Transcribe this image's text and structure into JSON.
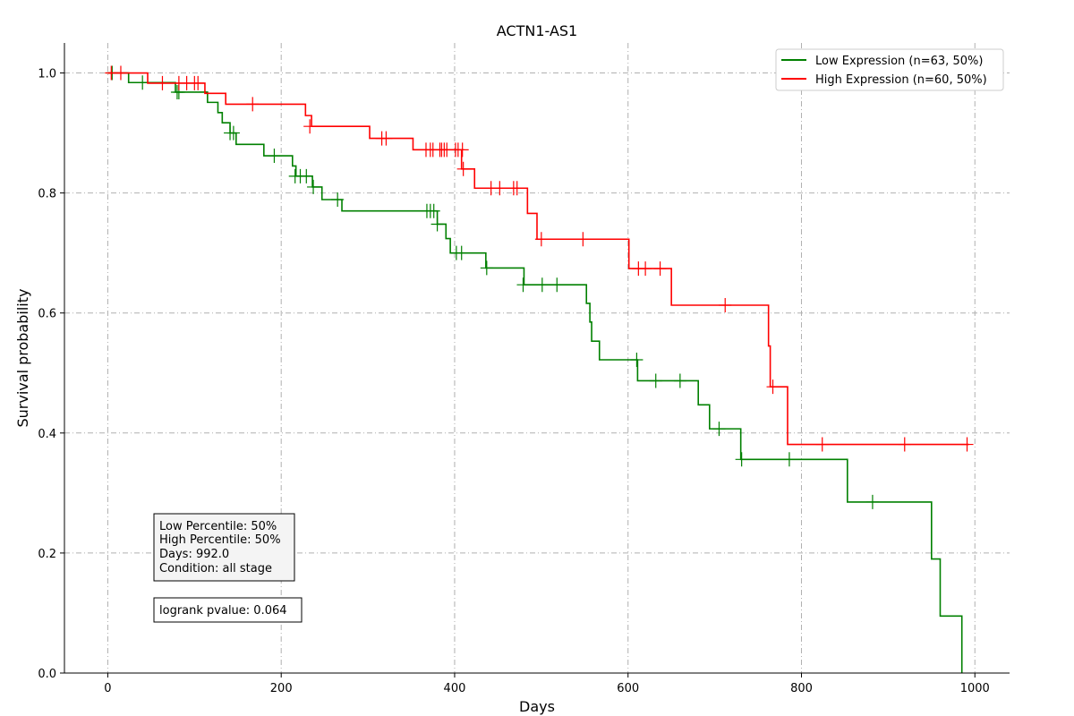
{
  "chart_data": {
    "type": "line",
    "title": "ACTN1-AS1",
    "xlabel": "Days",
    "ylabel": "Survival probability",
    "xlim": [
      -50,
      1040
    ],
    "ylim": [
      0,
      1.05
    ],
    "grid": true,
    "legend_position": "top-right",
    "x_ticks": [
      0,
      200,
      400,
      600,
      800,
      1000
    ],
    "y_ticks": [
      0.0,
      0.2,
      0.4,
      0.6,
      0.8,
      1.0
    ],
    "series": [
      {
        "name": "Low Expression (n=63, 50%)",
        "color": "#008000",
        "steps": [
          [
            0,
            1.0
          ],
          [
            24,
            0.984
          ],
          [
            78,
            0.968
          ],
          [
            115,
            0.951
          ],
          [
            127,
            0.934
          ],
          [
            132,
            0.917
          ],
          [
            141,
            0.9
          ],
          [
            148,
            0.881
          ],
          [
            180,
            0.862
          ],
          [
            213,
            0.845
          ],
          [
            217,
            0.828
          ],
          [
            236,
            0.81
          ],
          [
            247,
            0.789
          ],
          [
            270,
            0.77
          ],
          [
            380,
            0.748
          ],
          [
            390,
            0.724
          ],
          [
            395,
            0.7
          ],
          [
            436,
            0.675
          ],
          [
            480,
            0.647
          ],
          [
            552,
            0.616
          ],
          [
            556,
            0.585
          ],
          [
            558,
            0.553
          ],
          [
            567,
            0.522
          ],
          [
            611,
            0.487
          ],
          [
            681,
            0.447
          ],
          [
            694,
            0.407
          ],
          [
            730,
            0.356
          ],
          [
            853,
            0.285
          ],
          [
            950,
            0.19
          ],
          [
            960,
            0.095
          ],
          [
            985,
            0.0
          ]
        ],
        "end_x": 985,
        "censored": [
          [
            5,
            1.0
          ],
          [
            40,
            0.984
          ],
          [
            80,
            0.968
          ],
          [
            82,
            0.968
          ],
          [
            141,
            0.9
          ],
          [
            145,
            0.9
          ],
          [
            192,
            0.862
          ],
          [
            216,
            0.828
          ],
          [
            222,
            0.828
          ],
          [
            229,
            0.828
          ],
          [
            237,
            0.81
          ],
          [
            265,
            0.789
          ],
          [
            368,
            0.77
          ],
          [
            372,
            0.77
          ],
          [
            376,
            0.77
          ],
          [
            380,
            0.748
          ],
          [
            402,
            0.7
          ],
          [
            408,
            0.7
          ],
          [
            437,
            0.675
          ],
          [
            479,
            0.647
          ],
          [
            501,
            0.647
          ],
          [
            518,
            0.647
          ],
          [
            610,
            0.522
          ],
          [
            632,
            0.487
          ],
          [
            660,
            0.487
          ],
          [
            705,
            0.407
          ],
          [
            731,
            0.356
          ],
          [
            786,
            0.356
          ],
          [
            882,
            0.285
          ]
        ]
      },
      {
        "name": "High Expression (n=60, 50%)",
        "color": "#ff0000",
        "steps": [
          [
            0,
            1.0
          ],
          [
            46,
            0.983
          ],
          [
            112,
            0.966
          ],
          [
            136,
            0.948
          ],
          [
            228,
            0.929
          ],
          [
            235,
            0.911
          ],
          [
            302,
            0.891
          ],
          [
            352,
            0.872
          ],
          [
            408,
            0.84
          ],
          [
            423,
            0.808
          ],
          [
            484,
            0.766
          ],
          [
            495,
            0.723
          ],
          [
            601,
            0.674
          ],
          [
            650,
            0.613
          ],
          [
            762,
            0.545
          ],
          [
            764,
            0.477
          ],
          [
            784,
            0.381
          ]
        ],
        "end_x": 993,
        "censored": [
          [
            4,
            1.0
          ],
          [
            15,
            1.0
          ],
          [
            63,
            0.983
          ],
          [
            82,
            0.983
          ],
          [
            91,
            0.983
          ],
          [
            100,
            0.983
          ],
          [
            104,
            0.983
          ],
          [
            167,
            0.948
          ],
          [
            233,
            0.911
          ],
          [
            316,
            0.891
          ],
          [
            321,
            0.891
          ],
          [
            367,
            0.872
          ],
          [
            372,
            0.872
          ],
          [
            375,
            0.872
          ],
          [
            383,
            0.872
          ],
          [
            385,
            0.872
          ],
          [
            388,
            0.872
          ],
          [
            391,
            0.872
          ],
          [
            401,
            0.872
          ],
          [
            404,
            0.872
          ],
          [
            409,
            0.872
          ],
          [
            410,
            0.84
          ],
          [
            442,
            0.808
          ],
          [
            452,
            0.808
          ],
          [
            468,
            0.808
          ],
          [
            472,
            0.808
          ],
          [
            500,
            0.723
          ],
          [
            548,
            0.723
          ],
          [
            612,
            0.674
          ],
          [
            620,
            0.674
          ],
          [
            637,
            0.674
          ],
          [
            712,
            0.613
          ],
          [
            767,
            0.477
          ],
          [
            824,
            0.381
          ],
          [
            919,
            0.381
          ],
          [
            991,
            0.381
          ]
        ]
      }
    ],
    "info_box": [
      "Low Percentile: 50%",
      "High Percentile: 50%",
      "Days: 992.0",
      "Condition: all stage"
    ],
    "pvalue_text": "logrank pvalue: 0.064"
  }
}
